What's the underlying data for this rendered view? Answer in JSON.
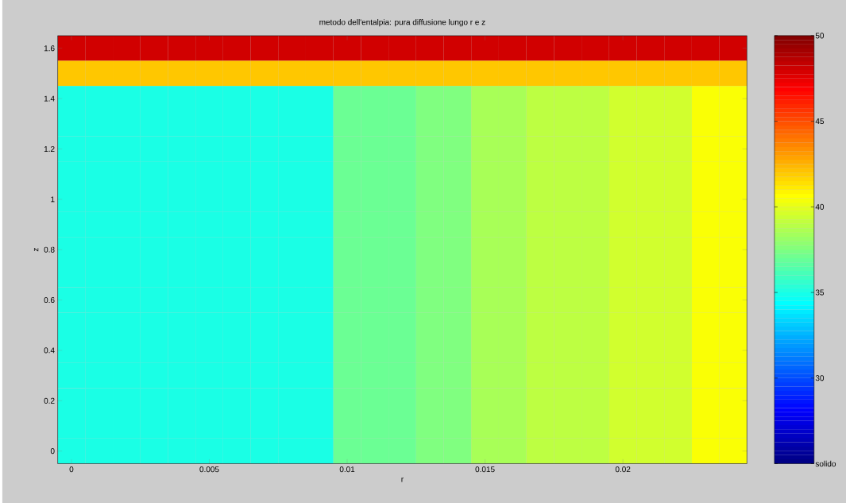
{
  "chart_data": {
    "type": "heatmap",
    "title": "metodo dell'entalpia: pura diffusione lungo r e z",
    "xlabel": "r",
    "ylabel": "z",
    "categories": [
      "0",
      null,
      null,
      null,
      null,
      "0.005",
      null,
      null,
      null,
      null,
      "0.01",
      null,
      null,
      null,
      null,
      "0.015",
      null,
      null,
      null,
      null,
      "0.02",
      null,
      null,
      null,
      null
    ],
    "y_categories": [
      "1.6",
      null,
      "1.4",
      null,
      "1.2",
      null,
      "1",
      null,
      "0.8",
      null,
      "0.6",
      null,
      "0.4",
      null,
      "0.2",
      null,
      "0"
    ],
    "clim": [
      25,
      50
    ],
    "cticks": [
      {
        "value": 25,
        "label": "solido"
      },
      30,
      35,
      40,
      45,
      50
    ],
    "cells": [
      [
        48,
        48,
        48,
        48,
        48,
        48,
        48,
        48,
        48,
        48,
        48,
        48,
        48,
        48,
        48,
        48,
        48,
        48,
        48,
        48,
        48,
        48,
        48,
        48,
        48
      ],
      [
        42,
        42,
        42,
        42,
        42,
        42,
        42,
        42,
        42,
        42,
        42,
        42,
        42,
        42,
        42,
        42,
        42,
        42,
        42,
        42,
        42,
        42,
        42,
        42,
        42
      ],
      [
        35,
        35,
        35,
        35,
        35,
        35,
        35,
        35,
        35,
        35,
        37,
        37,
        37,
        37.5,
        37.5,
        38.5,
        38.5,
        39,
        39,
        39,
        39.5,
        39.5,
        39.5,
        40.5,
        40.5
      ],
      [
        35,
        35,
        35,
        35,
        35,
        35,
        35,
        35,
        35,
        35,
        37,
        37,
        37,
        37.5,
        37.5,
        38.5,
        38.5,
        39,
        39,
        39,
        39.5,
        39.5,
        39.5,
        40.5,
        40.5
      ],
      [
        35,
        35,
        35,
        35,
        35,
        35,
        35,
        35,
        35,
        35,
        37,
        37,
        37,
        37.5,
        37.5,
        38.5,
        38.5,
        39,
        39,
        39,
        39.5,
        39.5,
        39.5,
        40.5,
        40.5
      ],
      [
        35,
        35,
        35,
        35,
        35,
        35,
        35,
        35,
        35,
        35,
        37,
        37,
        37,
        37.5,
        37.5,
        38.5,
        38.5,
        39,
        39,
        39,
        39.5,
        39.5,
        39.5,
        40.5,
        40.5
      ],
      [
        35,
        35,
        35,
        35,
        35,
        35,
        35,
        35,
        35,
        35,
        37,
        37,
        37,
        37.5,
        37.5,
        38.5,
        38.5,
        39,
        39,
        39,
        39.5,
        39.5,
        39.5,
        40.5,
        40.5
      ],
      [
        35,
        35,
        35,
        35,
        35,
        35,
        35,
        35,
        35,
        35,
        37,
        37,
        37,
        37.5,
        37.5,
        38.5,
        38.5,
        39,
        39,
        39,
        39.5,
        39.5,
        39.5,
        40.5,
        40.5
      ],
      [
        35,
        35,
        35,
        35,
        35,
        35,
        35,
        35,
        35,
        35,
        37,
        37,
        37,
        37.5,
        37.5,
        38.5,
        38.5,
        39,
        39,
        39,
        39.5,
        39.5,
        39.5,
        40.5,
        40.5
      ],
      [
        35,
        35,
        35,
        35,
        35,
        35,
        35,
        35,
        35,
        35,
        37,
        37,
        37,
        37.5,
        37.5,
        38.5,
        38.5,
        39,
        39,
        39,
        39.5,
        39.5,
        39.5,
        40.5,
        40.5
      ],
      [
        35,
        35,
        35,
        35,
        35,
        35,
        35,
        35,
        35,
        35,
        37,
        37,
        37,
        37.5,
        37.5,
        38.5,
        38.5,
        39,
        39,
        39,
        39.5,
        39.5,
        39.5,
        40.5,
        40.5
      ],
      [
        35,
        35,
        35,
        35,
        35,
        35,
        35,
        35,
        35,
        35,
        37,
        37,
        37,
        37.5,
        37.5,
        38.5,
        38.5,
        39,
        39,
        39,
        39.5,
        39.5,
        39.5,
        40.5,
        40.5
      ],
      [
        35,
        35,
        35,
        35,
        35,
        35,
        35,
        35,
        35,
        35,
        37,
        37,
        37,
        37.5,
        37.5,
        38.5,
        38.5,
        39,
        39,
        39,
        39.5,
        39.5,
        39.5,
        40.5,
        40.5
      ],
      [
        35,
        35,
        35,
        35,
        35,
        35,
        35,
        35,
        35,
        35,
        37,
        37,
        37,
        37.5,
        37.5,
        38.5,
        38.5,
        39,
        39,
        39,
        39.5,
        39.5,
        39.5,
        40.5,
        40.5
      ],
      [
        35,
        35,
        35,
        35,
        35,
        35,
        35,
        35,
        35,
        35,
        37,
        37,
        37,
        37.5,
        37.5,
        38.5,
        38.5,
        39,
        39,
        39,
        39.5,
        39.5,
        39.5,
        40.5,
        40.5
      ],
      [
        35,
        35,
        35,
        35,
        35,
        35,
        35,
        35,
        35,
        35,
        37,
        37,
        37,
        37.5,
        37.5,
        38.5,
        38.5,
        39,
        39,
        39,
        39.5,
        39.5,
        39.5,
        40.5,
        40.5
      ],
      [
        35,
        35,
        35,
        35,
        35,
        35,
        35,
        35,
        35,
        35,
        37,
        37,
        37,
        37.5,
        37.5,
        38.5,
        38.5,
        39,
        39,
        39,
        39.5,
        39.5,
        39.5,
        40.5,
        40.5
      ]
    ]
  }
}
